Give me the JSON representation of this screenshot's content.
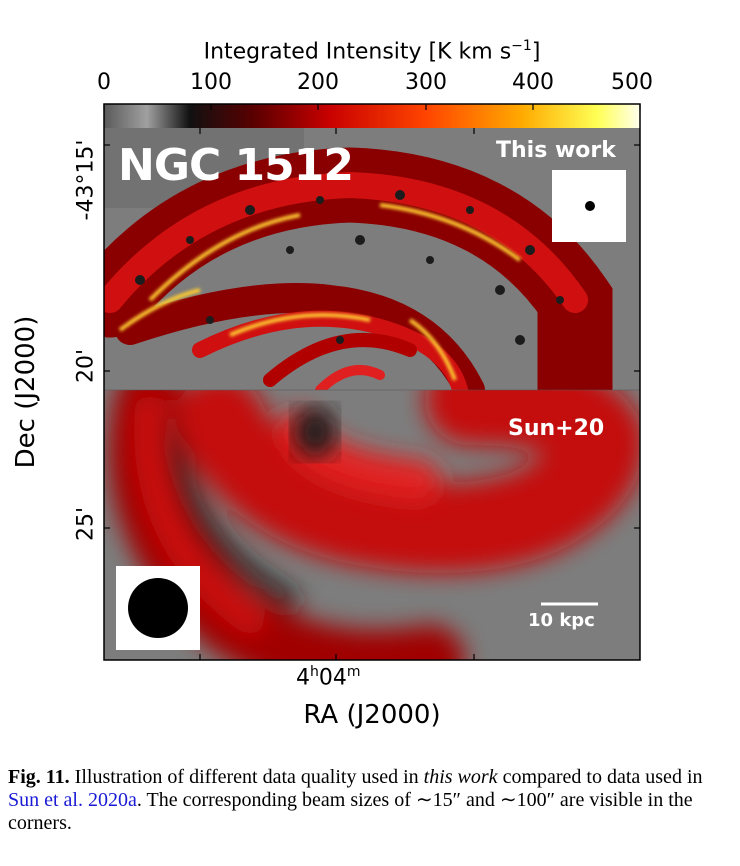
{
  "colorbar": {
    "title": "Integrated Intensity [K km s",
    "title_exp": "−1",
    "title_end": "]",
    "ticks": [
      "0",
      "100",
      "200",
      "300",
      "400",
      "500"
    ]
  },
  "panel": {
    "galaxy_name": "NGC 1512",
    "top_label": "This work",
    "bottom_label": "Sun+20",
    "scale_bar": "10 kpc"
  },
  "axes": {
    "xlabel": "RA (J2000)",
    "ylabel": "Dec (J2000)",
    "ra_tick_h": "4",
    "ra_tick_h_unit": "h",
    "ra_tick_m": "04",
    "ra_tick_m_unit": "m",
    "dec_ticks": [
      "-43°15'",
      "20'",
      "25'"
    ]
  },
  "caption": {
    "label": "Fig. 11.",
    "text1": " Illustration of different data quality used in ",
    "emph": "this work",
    "text2": " compared to data used in ",
    "ref": "Sun et al. 2020a",
    "text3": ". The corresponding beam sizes of ∼15″ and ∼100″ are visible in the corners."
  },
  "colors": {
    "background_gray": "#7d7d7d",
    "emission_red": "#c00000",
    "emission_yellow": "#ffe066"
  }
}
